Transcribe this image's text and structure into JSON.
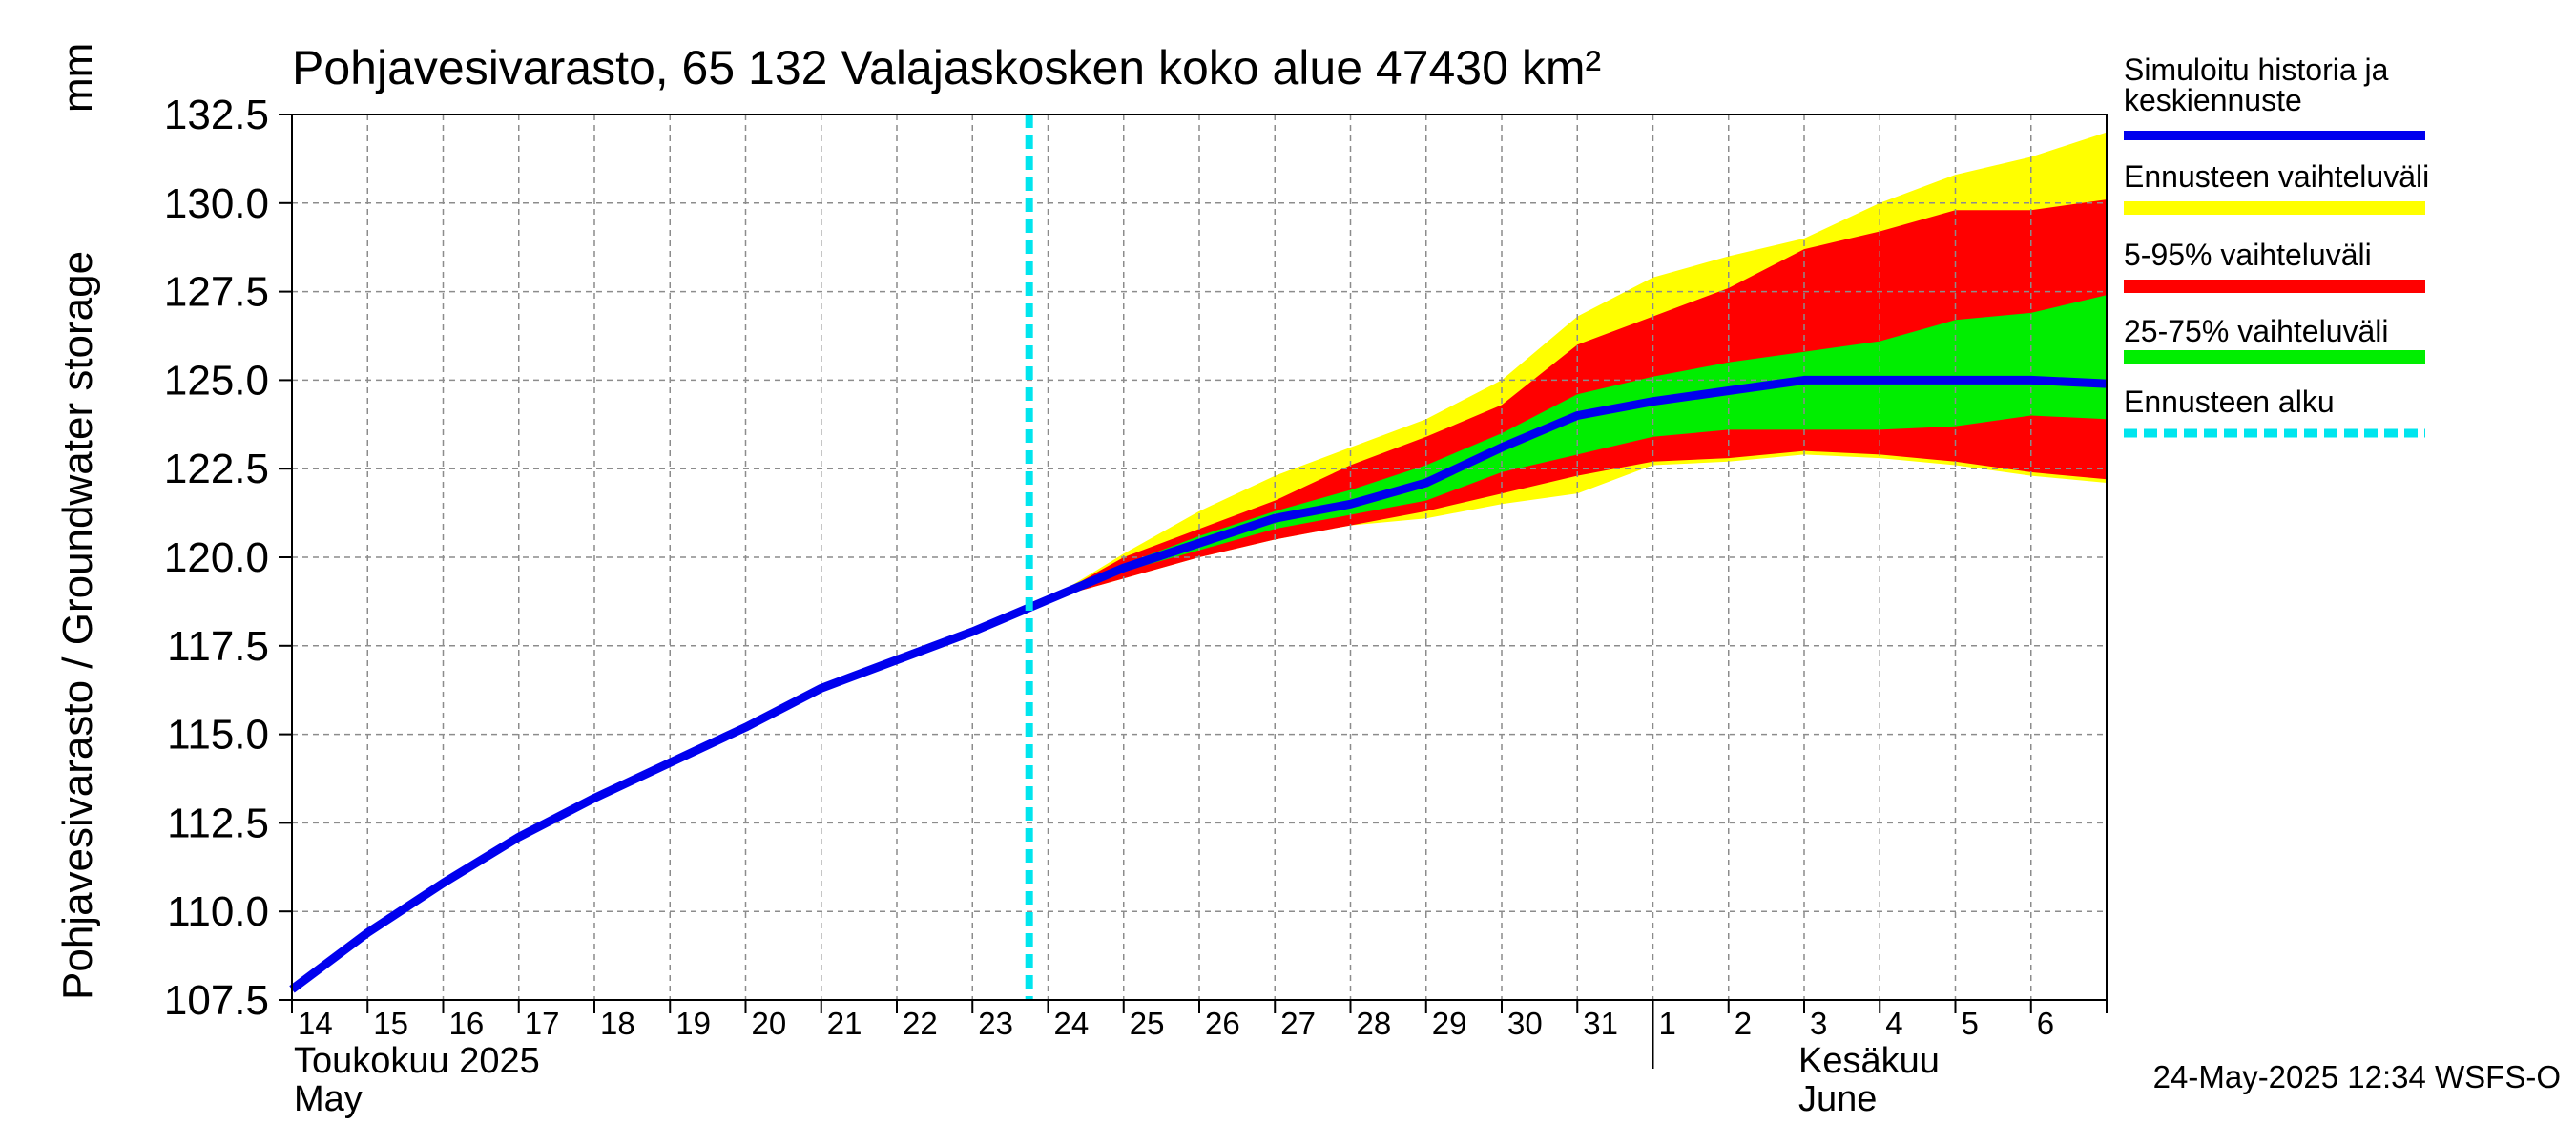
{
  "chart_data": {
    "type": "area",
    "title": "Pohjavesivarasto, 65 132 Valajaskosken koko alue 47430 km²",
    "ylabel": "Pohjavesivarasto / Groundwater storage",
    "yunit": "mm",
    "ylim": [
      107.5,
      132.5
    ],
    "yticks": [
      "107.5",
      "110.0",
      "112.5",
      "115.0",
      "117.5",
      "120.0",
      "122.5",
      "125.0",
      "127.5",
      "130.0",
      "132.5"
    ],
    "xlim": [
      "2025-05-14",
      "2025-06-07"
    ],
    "x_tick_labels": [
      "14",
      "15",
      "16",
      "17",
      "18",
      "19",
      "20",
      "21",
      "22",
      "23",
      "24",
      "25",
      "26",
      "27",
      "28",
      "29",
      "30",
      "31",
      "1",
      "2",
      "3",
      "4",
      "5",
      "6"
    ],
    "month_labels": [
      {
        "line1": "Toukokuu  2025",
        "line2": "May"
      },
      {
        "line1": "Kesäkuu",
        "line2": "June"
      }
    ],
    "grid": true,
    "legend_position": "right",
    "forecast_start": "2025-05-23T18:00",
    "series": [
      {
        "name": "Simuloitu historia ja keskiennuste",
        "color": "#0000ee",
        "x": [
          "2025-05-14",
          "2025-05-15",
          "2025-05-16",
          "2025-05-17",
          "2025-05-18",
          "2025-05-19",
          "2025-05-20",
          "2025-05-21",
          "2025-05-22",
          "2025-05-23",
          "2025-05-24",
          "2025-05-25",
          "2025-05-26",
          "2025-05-27",
          "2025-05-28",
          "2025-05-29",
          "2025-05-30",
          "2025-05-31",
          "2025-06-01",
          "2025-06-02",
          "2025-06-03",
          "2025-06-04",
          "2025-06-05",
          "2025-06-06",
          "2025-06-07"
        ],
        "values": [
          107.8,
          109.4,
          110.8,
          112.1,
          113.2,
          114.2,
          115.2,
          116.3,
          117.1,
          117.9,
          118.8,
          119.7,
          120.4,
          121.1,
          121.5,
          122.1,
          123.1,
          124.0,
          124.4,
          124.7,
          125.0,
          125.0,
          125.0,
          125.0,
          124.9
        ]
      }
    ],
    "bands": [
      {
        "name": "Ennusteen vaihteluväli",
        "color": "#ffff00",
        "x": [
          "2025-05-24",
          "2025-05-25",
          "2025-05-26",
          "2025-05-27",
          "2025-05-28",
          "2025-05-29",
          "2025-05-30",
          "2025-05-31",
          "2025-06-01",
          "2025-06-02",
          "2025-06-03",
          "2025-06-04",
          "2025-06-05",
          "2025-06-06",
          "2025-06-07"
        ],
        "upper": [
          118.8,
          120.1,
          121.3,
          122.3,
          123.1,
          123.9,
          125.0,
          126.8,
          127.9,
          128.5,
          129.0,
          130.0,
          130.8,
          131.3,
          132.0
        ],
        "lower": [
          118.8,
          119.4,
          120.0,
          120.5,
          120.9,
          121.1,
          121.5,
          121.8,
          122.6,
          122.7,
          122.9,
          122.8,
          122.6,
          122.3,
          122.1
        ]
      },
      {
        "name": "5-95% vaihteluväli",
        "color": "#ff0000",
        "x": [
          "2025-05-24",
          "2025-05-25",
          "2025-05-26",
          "2025-05-27",
          "2025-05-28",
          "2025-05-29",
          "2025-05-30",
          "2025-05-31",
          "2025-06-01",
          "2025-06-02",
          "2025-06-03",
          "2025-06-04",
          "2025-06-05",
          "2025-06-06",
          "2025-06-07"
        ],
        "upper": [
          118.8,
          120.0,
          120.8,
          121.6,
          122.6,
          123.4,
          124.3,
          126.0,
          126.8,
          127.6,
          128.7,
          129.2,
          129.8,
          129.8,
          130.1
        ],
        "lower": [
          118.8,
          119.4,
          120.0,
          120.5,
          120.9,
          121.3,
          121.8,
          122.3,
          122.7,
          122.8,
          123.0,
          122.9,
          122.7,
          122.4,
          122.2
        ]
      },
      {
        "name": "25-75% vaihteluväli",
        "color": "#00ee00",
        "x": [
          "2025-05-24",
          "2025-05-25",
          "2025-05-26",
          "2025-05-27",
          "2025-05-28",
          "2025-05-29",
          "2025-05-30",
          "2025-05-31",
          "2025-06-01",
          "2025-06-02",
          "2025-06-03",
          "2025-06-04",
          "2025-06-05",
          "2025-06-06",
          "2025-06-07"
        ],
        "upper": [
          118.8,
          119.8,
          120.6,
          121.3,
          121.9,
          122.6,
          123.5,
          124.6,
          125.1,
          125.5,
          125.8,
          126.1,
          126.7,
          126.9,
          127.4
        ],
        "lower": [
          118.8,
          119.6,
          120.2,
          120.8,
          121.2,
          121.6,
          122.4,
          122.9,
          123.4,
          123.6,
          123.6,
          123.6,
          123.7,
          124.0,
          123.9
        ]
      }
    ],
    "legend": [
      {
        "label": "Simuloitu historia ja keskiennuste",
        "color": "#0000ee",
        "style": "line"
      },
      {
        "label": "Ennusteen vaihteluväli",
        "color": "#ffff00",
        "style": "band"
      },
      {
        "label": "5-95% vaihteluväli",
        "color": "#ff0000",
        "style": "band"
      },
      {
        "label": "25-75% vaihteluväli",
        "color": "#00ee00",
        "style": "band"
      },
      {
        "label": "Ennusteen alku",
        "color": "#00e5ee",
        "style": "dashed"
      }
    ],
    "footer": "24-May-2025 12:34 WSFS-O"
  }
}
